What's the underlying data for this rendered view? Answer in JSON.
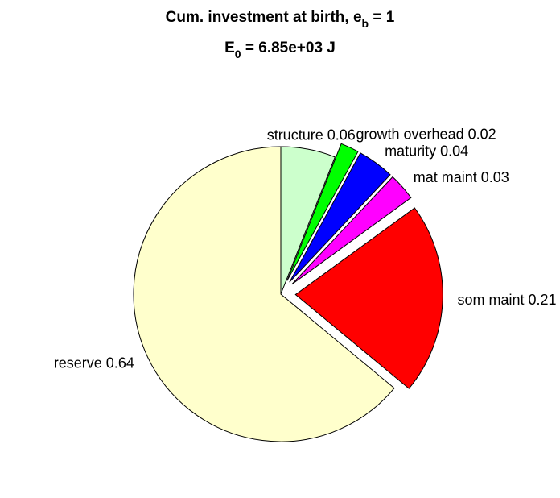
{
  "chart_data": {
    "type": "pie",
    "title": [
      "Cum. investment at birth, e",
      "b",
      " = 1"
    ],
    "subtitle": [
      "E",
      "0",
      " = 6.85e+03 J"
    ],
    "categories": [
      "structure",
      "growth overhead",
      "maturity",
      "mat maint",
      "som maint",
      "reserve"
    ],
    "values": [
      0.06,
      0.02,
      0.04,
      0.03,
      0.21,
      0.64
    ],
    "value_labels": [
      "structure 0.06",
      "growth overhead 0.02",
      "maturity 0.04",
      "mat maint 0.03",
      "som maint 0.21",
      "reserve 0.64"
    ],
    "colors": [
      "#ccffcc",
      "#00ff00",
      "#0000ff",
      "#ff00ff",
      "#ff0000",
      "#ffffcc"
    ],
    "explode": [
      false,
      true,
      true,
      true,
      true,
      false
    ]
  }
}
